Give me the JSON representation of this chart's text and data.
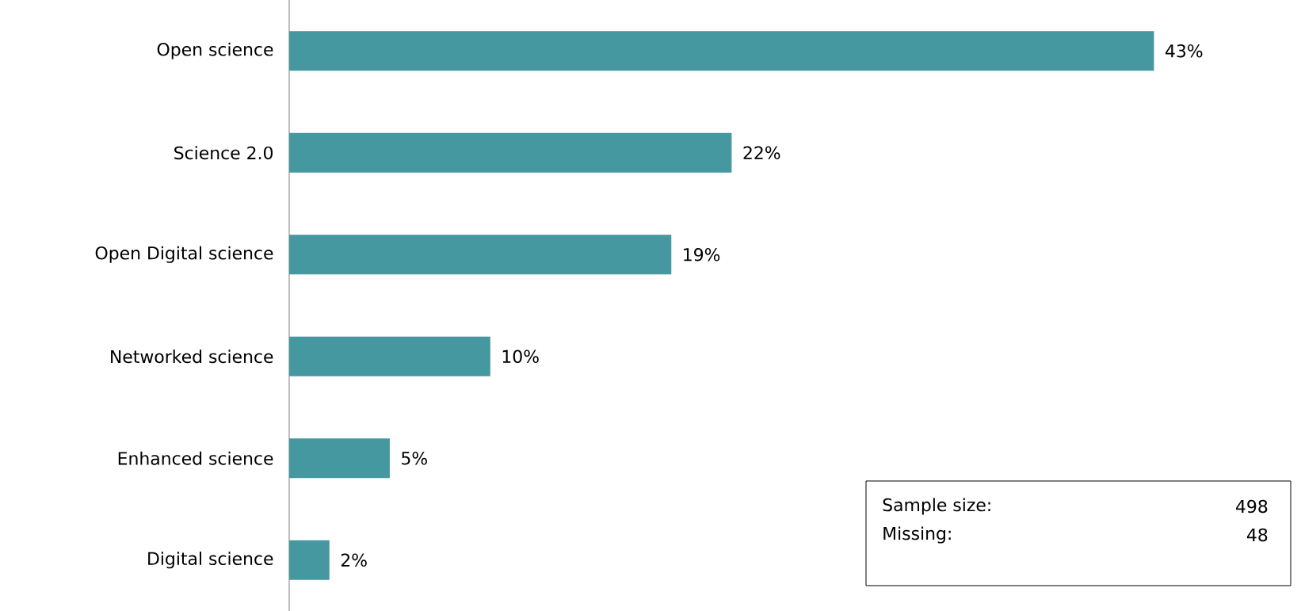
{
  "chart_data": {
    "type": "bar",
    "orientation": "horizontal",
    "categories": [
      "Open science",
      "Science 2.0",
      "Open Digital science",
      "Networked science",
      "Enhanced science",
      "Digital science"
    ],
    "values": [
      43,
      22,
      19,
      10,
      5,
      2
    ],
    "value_labels": [
      "43%",
      "22%",
      "19%",
      "10%",
      "5%",
      "2%"
    ],
    "color": "#4597a0",
    "annotations": [
      "Sample size:",
      "498",
      "Missing:",
      "48"
    ]
  }
}
